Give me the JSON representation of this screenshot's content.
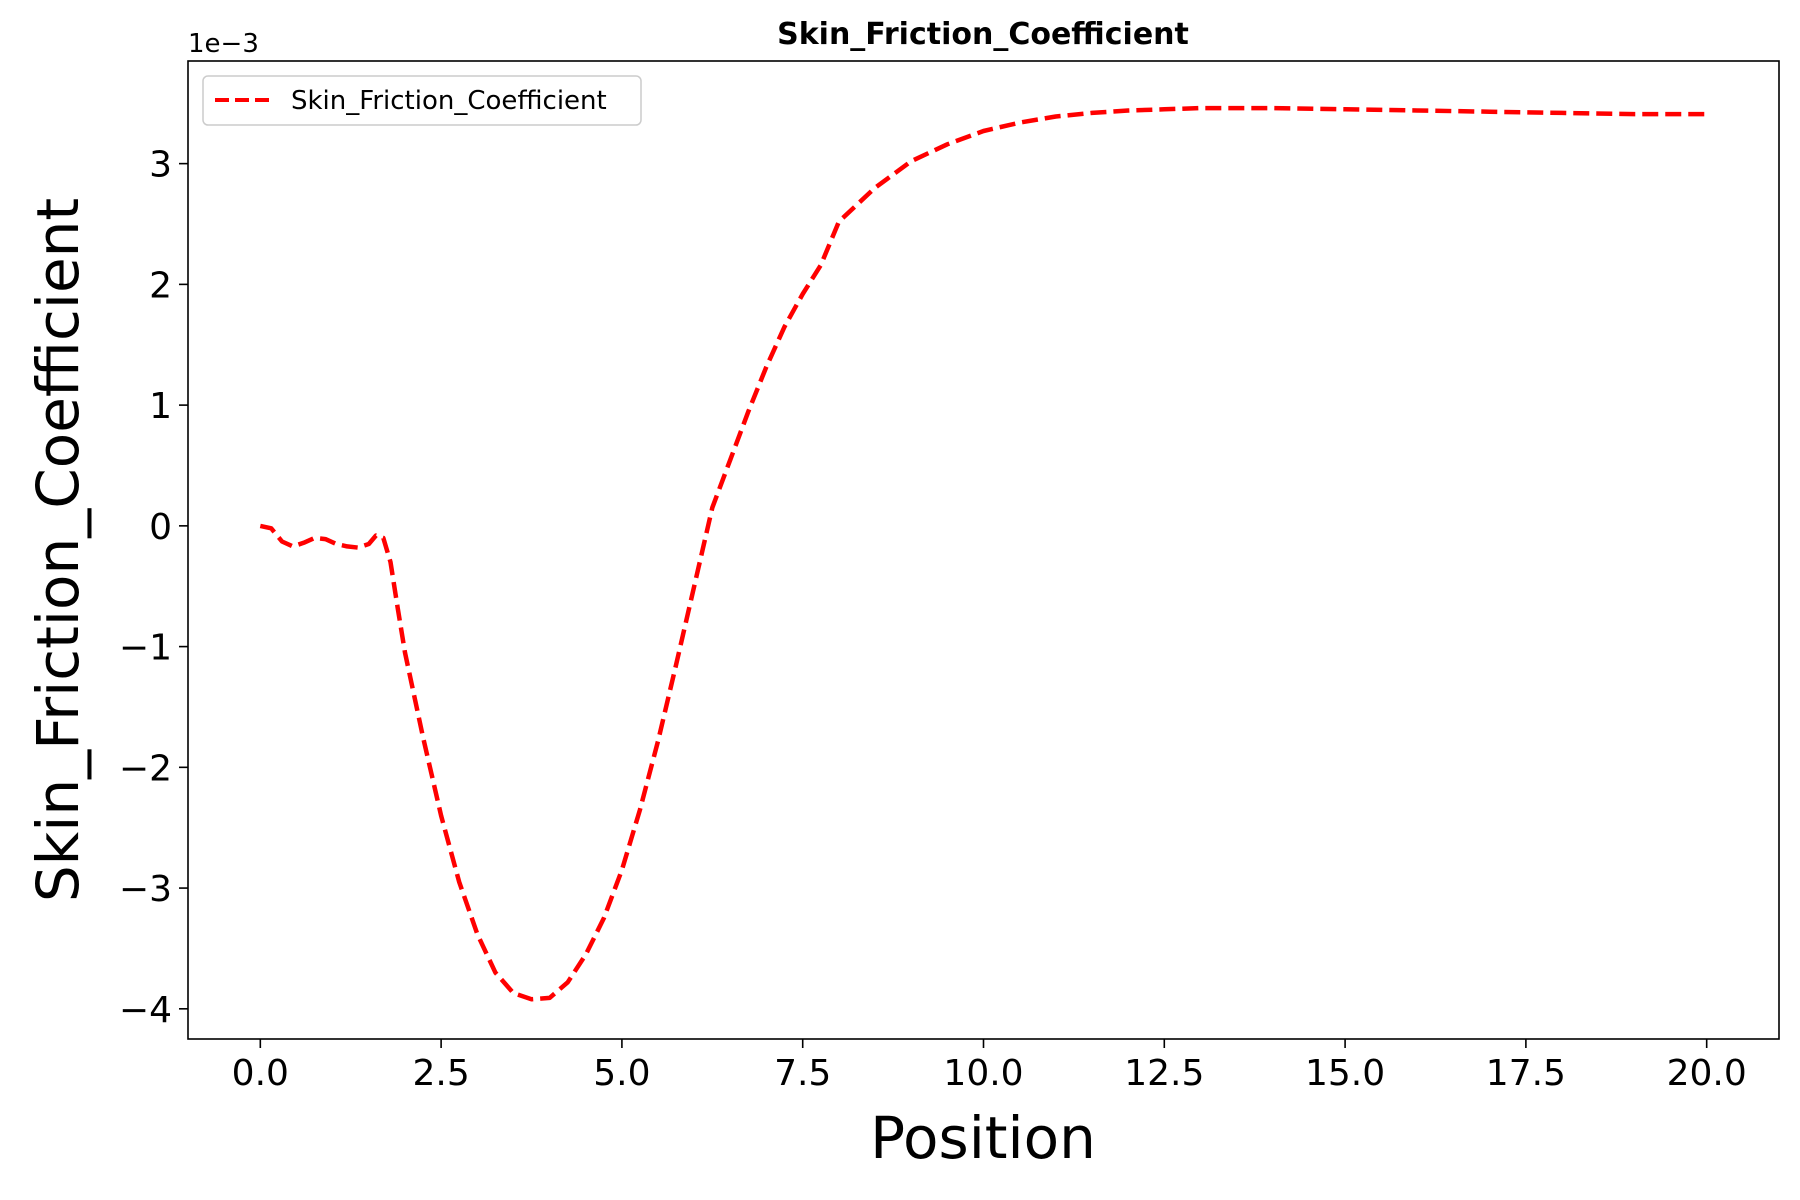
{
  "chart_data": {
    "type": "line",
    "title": "Skin_Friction_Coefficient",
    "xlabel": "Position",
    "ylabel": "Skin_Friction_Coefficient",
    "y_offset_label": "1e−3",
    "xlim": [
      -1.0,
      21.0
    ],
    "ylim": [
      -4.25,
      3.85
    ],
    "y_scale_factor": 0.001,
    "x_ticks": [
      0.0,
      2.5,
      5.0,
      7.5,
      10.0,
      12.5,
      15.0,
      17.5,
      20.0
    ],
    "x_tick_labels": [
      "0.0",
      "2.5",
      "5.0",
      "7.5",
      "10.0",
      "12.5",
      "15.0",
      "17.5",
      "20.0"
    ],
    "y_ticks": [
      -4,
      -3,
      -2,
      -1,
      0,
      1,
      2,
      3
    ],
    "y_tick_labels": [
      "−4",
      "−3",
      "−2",
      "−1",
      "0",
      "1",
      "2",
      "3"
    ],
    "grid": false,
    "legend_position": "top-left",
    "series": [
      {
        "name": "Skin_Friction_Coefficient",
        "color": "#ff0000",
        "line_style": "dashed",
        "x": [
          0.0,
          0.15,
          0.3,
          0.45,
          0.6,
          0.75,
          0.9,
          1.05,
          1.2,
          1.35,
          1.5,
          1.6,
          1.7,
          1.8,
          1.9,
          2.0,
          2.25,
          2.5,
          2.75,
          3.0,
          3.25,
          3.5,
          3.75,
          4.0,
          4.25,
          4.5,
          4.75,
          5.0,
          5.25,
          5.5,
          5.75,
          6.0,
          6.25,
          6.5,
          6.75,
          7.0,
          7.25,
          7.5,
          7.75,
          8.0,
          8.5,
          9.0,
          9.5,
          10.0,
          10.5,
          11.0,
          11.5,
          12.0,
          12.5,
          13.0,
          13.5,
          14.0,
          15.0,
          16.0,
          17.0,
          18.0,
          19.0,
          20.0
        ],
        "y": [
          0.0,
          -0.02,
          -0.13,
          -0.17,
          -0.14,
          -0.1,
          -0.11,
          -0.15,
          -0.17,
          -0.18,
          -0.15,
          -0.08,
          -0.1,
          -0.3,
          -0.68,
          -1.05,
          -1.75,
          -2.4,
          -2.95,
          -3.38,
          -3.7,
          -3.87,
          -3.92,
          -3.91,
          -3.78,
          -3.55,
          -3.25,
          -2.85,
          -2.35,
          -1.78,
          -1.15,
          -0.5,
          0.15,
          0.55,
          0.95,
          1.32,
          1.65,
          1.92,
          2.16,
          2.52,
          2.8,
          3.02,
          3.16,
          3.27,
          3.34,
          3.39,
          3.42,
          3.44,
          3.45,
          3.46,
          3.46,
          3.46,
          3.45,
          3.44,
          3.43,
          3.42,
          3.41,
          3.41
        ]
      }
    ]
  }
}
